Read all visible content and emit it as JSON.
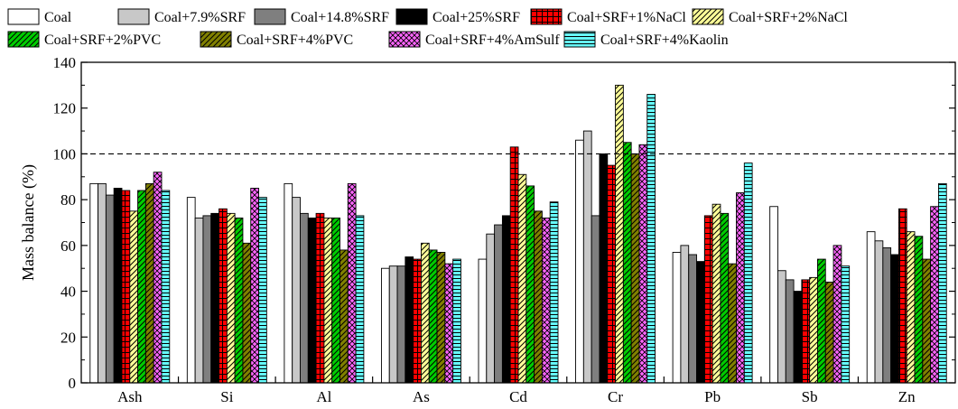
{
  "chart_data": {
    "type": "bar",
    "title": "",
    "xlabel": "",
    "ylabel": "Mass balance (%)",
    "ylim": [
      0,
      140
    ],
    "yticks": [
      0,
      20,
      40,
      60,
      80,
      100,
      120,
      140
    ],
    "reference_line": 100,
    "legend_position": "top",
    "categories": [
      "Ash",
      "Si",
      "Al",
      "As",
      "Cd",
      "Cr",
      "Pb",
      "Sb",
      "Zn"
    ],
    "series": [
      {
        "name": "Coal",
        "color": "#ffffff",
        "pattern": "solid",
        "values": [
          87,
          81,
          87,
          50,
          54,
          106,
          57,
          77,
          66
        ]
      },
      {
        "name": "Coal+7.9%SRF",
        "color": "#c8c8c8",
        "pattern": "solid",
        "values": [
          87,
          72,
          81,
          51,
          65,
          110,
          60,
          49,
          62
        ]
      },
      {
        "name": "Coal+14.8%SRF",
        "color": "#7f7f7f",
        "pattern": "solid",
        "values": [
          82,
          73,
          74,
          51,
          69,
          73,
          56,
          45,
          59
        ]
      },
      {
        "name": "Coal+25%SRF",
        "color": "#000000",
        "pattern": "solid",
        "values": [
          85,
          74,
          72,
          55,
          73,
          100,
          53,
          40,
          56
        ]
      },
      {
        "name": "Coal+SRF+1%NaCl",
        "color": "#ff0000",
        "pattern": "grid",
        "values": [
          84,
          76,
          74,
          54,
          103,
          95,
          73,
          45,
          76
        ]
      },
      {
        "name": "Coal+SRF+2%NaCl",
        "color": "#ffff99",
        "pattern": "diag-right",
        "values": [
          75,
          74,
          72,
          61,
          91,
          130,
          78,
          46,
          66
        ]
      },
      {
        "name": "Coal+SRF+2%PVC",
        "color": "#00cc00",
        "pattern": "diag-right",
        "values": [
          84,
          72,
          72,
          58,
          86,
          105,
          74,
          54,
          64
        ]
      },
      {
        "name": "Coal+SRF+4%PVC",
        "color": "#808000",
        "pattern": "diag-right",
        "values": [
          87,
          61,
          58,
          57,
          75,
          100,
          52,
          44,
          54
        ]
      },
      {
        "name": "Coal+SRF+4%AmSulf",
        "color": "#ff66ff",
        "pattern": "cross",
        "values": [
          92,
          85,
          87,
          52,
          72,
          104,
          83,
          60,
          77
        ]
      },
      {
        "name": "Coal+SRF+4%Kaolin",
        "color": "#66ffff",
        "pattern": "hlines",
        "values": [
          84,
          81,
          73,
          54,
          79,
          126,
          96,
          51,
          87
        ]
      }
    ]
  }
}
